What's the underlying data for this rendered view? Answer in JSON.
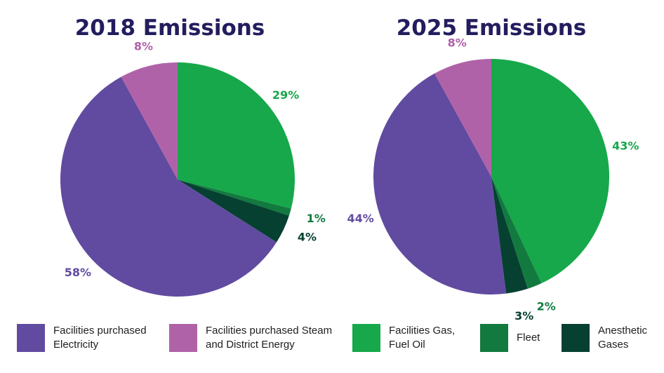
{
  "chart_data": [
    {
      "type": "pie",
      "title": "2018 Emissions",
      "slices": [
        {
          "name": "Facilities Gas, Fuel Oil",
          "value": 29,
          "label": "29%",
          "color": "#16a84b"
        },
        {
          "name": "Fleet",
          "value": 1,
          "label": "1%",
          "color": "#127a3f"
        },
        {
          "name": "Anesthetic Gases",
          "value": 4,
          "label": "4%",
          "color": "#064031"
        },
        {
          "name": "Facilities purchased Electricity",
          "value": 58,
          "label": "58%",
          "color": "#614ba0"
        },
        {
          "name": "Facilities purchased Steam and District Energy",
          "value": 8,
          "label": "8%",
          "color": "#b062a8"
        }
      ]
    },
    {
      "type": "pie",
      "title": "2025 Emissions",
      "slices": [
        {
          "name": "Facilities Gas, Fuel Oil",
          "value": 43,
          "label": "43%",
          "color": "#16a84b"
        },
        {
          "name": "Fleet",
          "value": 2,
          "label": "2%",
          "color": "#127a3f"
        },
        {
          "name": "Anesthetic Gases",
          "value": 3,
          "label": "3%",
          "color": "#064031"
        },
        {
          "name": "Facilities purchased Electricity",
          "value": 44,
          "label": "44%",
          "color": "#614ba0"
        },
        {
          "name": "Facilities purchased Steam and District Energy",
          "value": 8,
          "label": "8%",
          "color": "#b062a8"
        }
      ]
    }
  ],
  "legend": [
    {
      "label": "Facilities purchased\nElectricity",
      "color": "#614ba0"
    },
    {
      "label": "Facilities purchased Steam\nand District Energy",
      "color": "#b062a8"
    },
    {
      "label": "Facilities Gas,\nFuel Oil",
      "color": "#16a84b"
    },
    {
      "label": "Fleet",
      "color": "#127a3f"
    },
    {
      "label": "Anesthetic\nGases",
      "color": "#064031"
    }
  ],
  "label_colors": {
    "Facilities purchased Electricity": "#614ba0",
    "Facilities purchased Steam and District Energy": "#b062a8",
    "Facilities Gas, Fuel Oil": "#16a84b",
    "Fleet": "#127a3f",
    "Anesthetic Gases": "#064031"
  }
}
